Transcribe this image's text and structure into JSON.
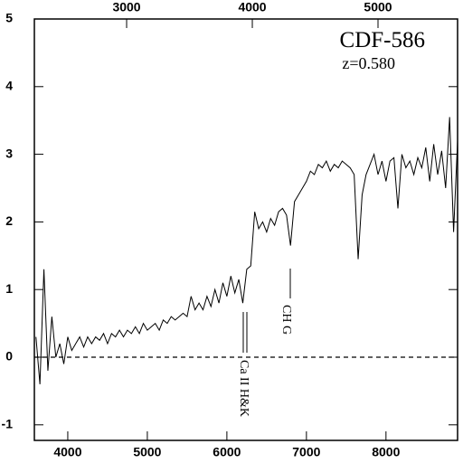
{
  "chart_data": {
    "type": "line",
    "annotations": [
      "CDF-586",
      "z=0.580",
      "Ca II H&K",
      "CH G"
    ],
    "x": [
      3600,
      3650,
      3700,
      3750,
      3800,
      3850,
      3900,
      3950,
      4000,
      4050,
      4100,
      4150,
      4200,
      4250,
      4300,
      4350,
      4400,
      4450,
      4500,
      4550,
      4600,
      4650,
      4700,
      4750,
      4800,
      4850,
      4900,
      4950,
      5000,
      5050,
      5100,
      5150,
      5200,
      5250,
      5300,
      5350,
      5400,
      5450,
      5500,
      5550,
      5600,
      5650,
      5700,
      5750,
      5800,
      5850,
      5900,
      5950,
      6000,
      6050,
      6100,
      6150,
      6200,
      6250,
      6300,
      6350,
      6400,
      6450,
      6500,
      6550,
      6600,
      6650,
      6700,
      6750,
      6800,
      6850,
      6900,
      6950,
      7000,
      7050,
      7100,
      7150,
      7200,
      7250,
      7300,
      7350,
      7400,
      7450,
      7500,
      7550,
      7600,
      7650,
      7700,
      7750,
      7800,
      7850,
      7900,
      7950,
      8000,
      8050,
      8100,
      8150,
      8200,
      8250,
      8300,
      8350,
      8400,
      8450,
      8500,
      8550,
      8600,
      8650,
      8700,
      8750,
      8800,
      8850,
      8900
    ],
    "values": [
      0.3,
      -0.4,
      1.3,
      -0.2,
      0.6,
      0.0,
      0.2,
      -0.1,
      0.3,
      0.1,
      0.2,
      0.3,
      0.15,
      0.3,
      0.2,
      0.3,
      0.25,
      0.35,
      0.2,
      0.35,
      0.3,
      0.4,
      0.3,
      0.4,
      0.35,
      0.45,
      0.35,
      0.5,
      0.4,
      0.45,
      0.5,
      0.4,
      0.55,
      0.5,
      0.6,
      0.55,
      0.6,
      0.65,
      0.6,
      0.9,
      0.7,
      0.8,
      0.7,
      0.9,
      0.75,
      1.0,
      0.8,
      1.1,
      0.9,
      1.2,
      0.95,
      1.15,
      0.8,
      1.3,
      1.35,
      2.15,
      1.9,
      2.0,
      1.85,
      2.05,
      1.95,
      2.15,
      2.2,
      2.1,
      1.65,
      2.3,
      2.4,
      2.5,
      2.6,
      2.75,
      2.7,
      2.85,
      2.8,
      2.9,
      2.75,
      2.85,
      2.8,
      2.9,
      2.85,
      2.8,
      2.7,
      1.45,
      2.4,
      2.7,
      2.85,
      3.0,
      2.7,
      2.9,
      2.6,
      2.9,
      2.95,
      2.2,
      3.0,
      2.8,
      2.9,
      2.7,
      2.95,
      2.8,
      3.1,
      2.6,
      3.15,
      2.7,
      3.05,
      2.5,
      3.55,
      1.85,
      3.2
    ],
    "color": "#000000",
    "xlim": [
      3580,
      8900
    ],
    "xticks": [
      4000,
      5000,
      6000,
      7000,
      8000
    ],
    "x2lim": [
      2266,
      5633
    ],
    "x2ticks": [
      3000,
      4000,
      5000
    ],
    "ylim": [
      -1.23,
      5
    ],
    "yticks": [
      -1,
      0,
      1,
      2,
      3,
      4,
      5
    ],
    "hline": 0
  }
}
